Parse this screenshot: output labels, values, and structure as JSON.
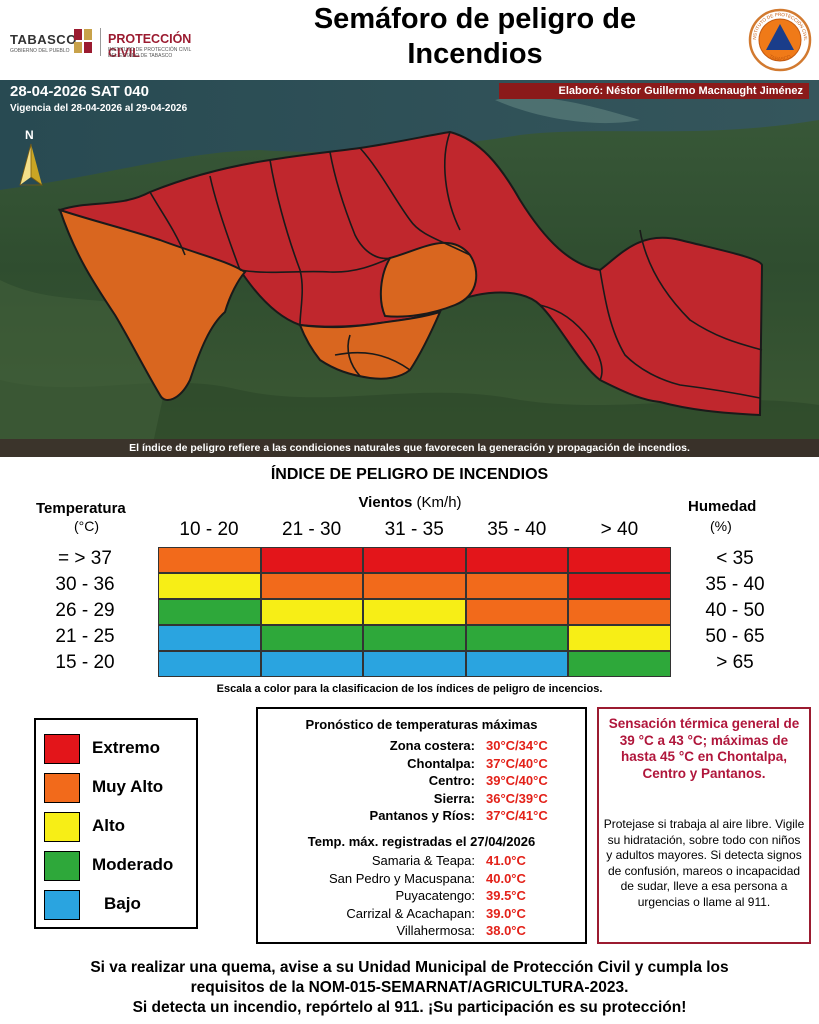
{
  "header": {
    "logo_tabasco": "TABASCO",
    "logo_tabasco_sub": "GOBIERNO DEL PUEBLO",
    "logo_pc": "PROTECCIÓN CIVIL",
    "logo_pc_sub1": "INSTITUTO DE PROTECCIÓN CIVIL",
    "logo_pc_sub2": "DEL ESTADO DE TABASCO",
    "title_line1": "Semáforo de peligro de",
    "title_line2": "Incendios",
    "seal_text_top": "INSTITUTO DE PROTECCIÓN CIVIL",
    "seal_text_bottom": "TABASCO"
  },
  "map": {
    "date_code": "28-04-2026 SAT 040",
    "vigencia": "Vigencia del 28-04-2026 al 29-04-2026",
    "elaboro": "Elaboró: Néstor Guillermo Macnaught Jiménez",
    "north": "N",
    "note": "El índice de peligro refiere a las condiciones naturales que favorecen la generación y propagación de incendios.",
    "icons": [
      "north-arrow-icon"
    ],
    "colors": {
      "extremo": "#c0272d",
      "muy_alto": "#d9661f",
      "border": "#1a1a1a"
    }
  },
  "index": {
    "title": "ÍNDICE DE PELIGRO DE INCENDIOS",
    "vientos_label": "Vientos",
    "vientos_unit": "(Km/h)",
    "temp_label": "Temperatura",
    "temp_unit": "(°C)",
    "hum_label": "Humedad",
    "hum_unit": "(%)",
    "wind_cols": [
      "10 - 20",
      "21 - 30",
      "31 - 35",
      "35 - 40",
      "> 40"
    ],
    "temp_rows": [
      "= > 37",
      "30 - 36",
      "26 - 29",
      "21 - 25",
      "15 - 20"
    ],
    "hum_rows": [
      "< 35",
      "35 - 40",
      "40 - 50",
      "50 - 65",
      "> 65"
    ],
    "matrix": [
      [
        "muy_alto",
        "extremo",
        "extremo",
        "extremo",
        "extremo"
      ],
      [
        "alto",
        "muy_alto",
        "muy_alto",
        "muy_alto",
        "extremo"
      ],
      [
        "moderado",
        "alto",
        "alto",
        "muy_alto",
        "muy_alto"
      ],
      [
        "bajo",
        "moderado",
        "moderado",
        "moderado",
        "alto"
      ],
      [
        "bajo",
        "bajo",
        "bajo",
        "bajo",
        "moderado"
      ]
    ],
    "scale_note": "Escala a color para la clasificacion de los índices de peligro de incencios."
  },
  "levels": {
    "extremo": {
      "label": "Extremo",
      "color": "#e3151a"
    },
    "muy_alto": {
      "label": "Muy Alto",
      "color": "#f26a1b"
    },
    "alto": {
      "label": "Alto",
      "color": "#f7ee16"
    },
    "moderado": {
      "label": "Moderado",
      "color": "#2ea83a"
    },
    "bajo": {
      "label": "Bajo",
      "color": "#2aa4e0"
    }
  },
  "legend": {
    "order": [
      "extremo",
      "muy_alto",
      "alto",
      "moderado",
      "bajo"
    ]
  },
  "forecast": {
    "title": "Pronóstico de temperaturas máximas",
    "rows": [
      {
        "zone": "Zona costera:",
        "value": "30°C/34°C"
      },
      {
        "zone": "Chontalpa:",
        "value": "37°C/40°C"
      },
      {
        "zone": "Centro:",
        "value": "39°C/40°C"
      },
      {
        "zone": "Sierra:",
        "value": "36°C/39°C"
      },
      {
        "zone": "Pantanos y Ríos:",
        "value": "37°C/41°C"
      }
    ],
    "registered_title": "Temp. máx. registradas el 27/04/2026",
    "registered": [
      {
        "zone": "Samaria & Teapa:",
        "value": "41.0°C"
      },
      {
        "zone": "San Pedro y Macuspana:",
        "value": "40.0°C"
      },
      {
        "zone": "Puyacatengo:",
        "value": "39.5°C"
      },
      {
        "zone": "Carrizal & Acachapan:",
        "value": "39.0°C"
      },
      {
        "zone": "Villahermosa:",
        "value": "38.0°C"
      }
    ]
  },
  "alert": {
    "headline": "Sensación térmica general de 39 °C a 43 °C; máximas de hasta 45 °C en Chontalpa, Centro y Pantanos.",
    "body": "Protejase si trabaja al aire libre. Vigile su hidratación, sobre todo con niños y adultos mayores. Si detecta signos de confusión, mareos o incapacidad de sudar, lleve a esa persona a urgencias o llame al 911."
  },
  "footer": {
    "line1": "Si va realizar una quema, avise a su Unidad Municipal de Protección Civil y cumpla los",
    "line2": "requisitos de la NOM-015-SEMARNAT/AGRICULTURA-2023.",
    "line3": "Si detecta un incendio, repórtelo al 911. ¡Su participación es su protección!"
  }
}
